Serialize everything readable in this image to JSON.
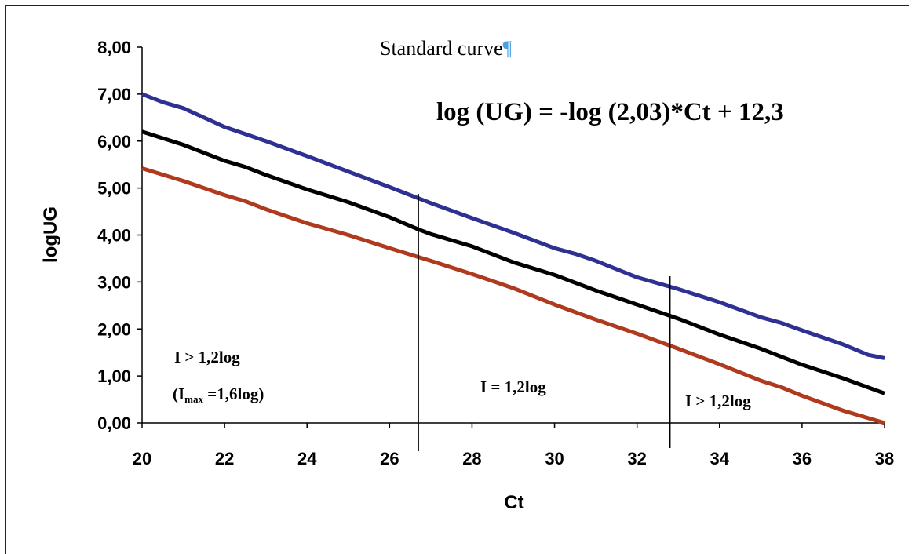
{
  "chart_data": {
    "type": "line",
    "title": "Standard curve",
    "title_mark": "¶",
    "xlabel": "Ct",
    "ylabel": "logUG",
    "xlim": [
      20,
      38
    ],
    "ylim": [
      0,
      8
    ],
    "x_ticks": [
      "20",
      "22",
      "24",
      "26",
      "28",
      "30",
      "32",
      "34",
      "36",
      "38"
    ],
    "y_ticks": [
      "0,00",
      "1,00",
      "2,00",
      "3,00",
      "4,00",
      "5,00",
      "6,00",
      "7,00",
      "8,00"
    ],
    "equation": "log (UG) = -log (2,03)*Ct + 12,3",
    "series": [
      {
        "color": "#2e3192",
        "x": [
          20,
          20.5,
          21,
          22,
          23,
          24,
          25,
          26,
          27,
          28,
          29,
          30,
          30.5,
          31,
          32,
          33,
          34,
          35,
          35.5,
          36,
          37,
          37.6,
          38
        ],
        "y": [
          7.0,
          6.83,
          6.7,
          6.3,
          6.0,
          5.68,
          5.35,
          5.02,
          4.68,
          4.36,
          4.05,
          3.72,
          3.6,
          3.45,
          3.1,
          2.85,
          2.57,
          2.25,
          2.13,
          1.97,
          1.67,
          1.45,
          1.38
        ]
      },
      {
        "color": "#000000",
        "x": [
          20,
          21,
          22,
          22.5,
          23,
          24,
          25,
          26,
          26.7,
          27,
          28,
          29,
          30,
          31,
          32,
          32.8,
          33,
          34,
          35,
          36,
          37,
          38
        ],
        "y": [
          6.2,
          5.92,
          5.58,
          5.45,
          5.28,
          4.97,
          4.7,
          4.38,
          4.12,
          4.02,
          3.76,
          3.42,
          3.15,
          2.82,
          2.52,
          2.28,
          2.22,
          1.88,
          1.58,
          1.24,
          0.95,
          0.63
        ]
      },
      {
        "color": "#b03a1e",
        "x": [
          20,
          21,
          22,
          22.5,
          23,
          24,
          25,
          26,
          27,
          28,
          29,
          30,
          31,
          32,
          33,
          34,
          35,
          35.5,
          36,
          37,
          38
        ],
        "y": [
          5.42,
          5.15,
          4.85,
          4.72,
          4.55,
          4.25,
          4.0,
          3.72,
          3.45,
          3.17,
          2.87,
          2.52,
          2.2,
          1.9,
          1.58,
          1.25,
          0.9,
          0.76,
          0.58,
          0.26,
          0.0
        ]
      }
    ],
    "vlines": [
      26.7,
      32.8
    ],
    "annotations": {
      "left_line1": "I  > 1,2log",
      "left_line2_open": "(I",
      "left_line2_sub": "max",
      "left_line2_rest": " =1,6log)",
      "middle": "I = 1,2log",
      "right": "I > 1,2log"
    },
    "grid": false
  }
}
